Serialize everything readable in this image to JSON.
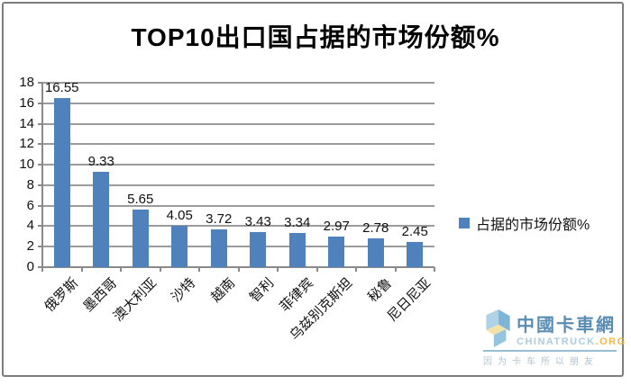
{
  "title": "TOP10出口国占据的市场份额%",
  "chart_data": {
    "type": "bar",
    "categories": [
      "俄罗斯",
      "墨西哥",
      "澳大利亚",
      "沙特",
      "越南",
      "智利",
      "菲律宾",
      "乌兹别克斯坦",
      "秘鲁",
      "尼日尼亚"
    ],
    "values": [
      16.55,
      9.33,
      5.65,
      4.05,
      3.72,
      3.43,
      3.34,
      2.97,
      2.78,
      2.45
    ],
    "series_name": "占据的市场份额%",
    "xlabel": "",
    "ylabel": "",
    "ylim": [
      0,
      18
    ],
    "ytick_step": 2,
    "grid": true,
    "legend_position": "right",
    "bar_color": "#4F81BD",
    "gridline_color": "#9b9b9b",
    "data_labels": true
  },
  "legend": {
    "label": "占据的市场份额%"
  },
  "watermark": {
    "name_cn": "中國卡車網",
    "site": "CHINATRUCK",
    "site_tld": ".ORG",
    "tagline": "因为卡车所以朋友"
  }
}
